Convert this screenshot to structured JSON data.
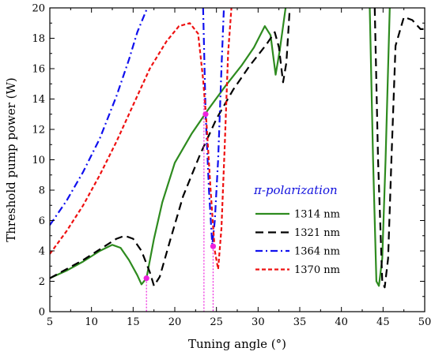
{
  "chart_data": {
    "type": "line",
    "title": "",
    "xlabel": "Tuning angle (°)",
    "ylabel": "Threshold pump power (W)",
    "xlim": [
      5,
      50
    ],
    "ylim": [
      0,
      20
    ],
    "x_ticks": [
      5,
      10,
      15,
      20,
      25,
      30,
      35,
      40,
      45,
      50
    ],
    "y_ticks": [
      0,
      2,
      4,
      6,
      8,
      10,
      12,
      14,
      16,
      18,
      20
    ],
    "grid": false,
    "legend": {
      "title": "π-polarization",
      "placement": "center-right"
    },
    "series": [
      {
        "name": "1314 nm",
        "color": "#2e8b1f",
        "dash": "solid",
        "segments": [
          [
            [
              5,
              2.2
            ],
            [
              7,
              2.7
            ],
            [
              9,
              3.3
            ],
            [
              11,
              4.0
            ],
            [
              12.5,
              4.4
            ],
            [
              13.5,
              4.2
            ],
            [
              14.5,
              3.4
            ],
            [
              15.5,
              2.4
            ],
            [
              16,
              1.8
            ],
            [
              16.6,
              2.2
            ],
            [
              17.5,
              4.8
            ],
            [
              18.5,
              7.2
            ],
            [
              20,
              9.8
            ],
            [
              22,
              11.7
            ],
            [
              24,
              13.3
            ],
            [
              26,
              14.8
            ],
            [
              28,
              16.2
            ],
            [
              29.5,
              17.4
            ],
            [
              30.8,
              18.8
            ],
            [
              31.5,
              18.2
            ],
            [
              32.1,
              15.6
            ],
            [
              32.6,
              17.2
            ],
            [
              33.3,
              20
            ]
          ],
          [
            [
              43.4,
              20
            ],
            [
              43.8,
              10
            ],
            [
              44.2,
              2.0
            ],
            [
              44.5,
              1.7
            ],
            [
              44.9,
              3.5
            ],
            [
              45.3,
              10
            ],
            [
              45.8,
              20
            ]
          ]
        ]
      },
      {
        "name": "1321 nm",
        "color": "#000000",
        "dash": "long-dash",
        "segments": [
          [
            [
              5,
              2.2
            ],
            [
              7,
              2.8
            ],
            [
              9,
              3.4
            ],
            [
              11,
              4.1
            ],
            [
              13,
              4.8
            ],
            [
              14,
              5.0
            ],
            [
              15,
              4.8
            ],
            [
              16,
              4.0
            ],
            [
              17,
              2.6
            ],
            [
              17.5,
              1.7
            ],
            [
              18.2,
              2.3
            ],
            [
              19.5,
              4.8
            ],
            [
              21,
              7.6
            ],
            [
              23,
              10.3
            ],
            [
              25,
              12.7
            ],
            [
              27,
              14.6
            ],
            [
              29,
              16.2
            ],
            [
              31,
              17.6
            ],
            [
              32,
              18.4
            ],
            [
              32.5,
              17.4
            ],
            [
              33,
              15.1
            ],
            [
              33.4,
              16.4
            ],
            [
              33.8,
              20
            ]
          ],
          [
            [
              44.0,
              20
            ],
            [
              44.4,
              10
            ],
            [
              44.9,
              2.0
            ],
            [
              45.2,
              1.6
            ],
            [
              45.6,
              3.5
            ],
            [
              46.0,
              10
            ],
            [
              46.5,
              17.5
            ],
            [
              47.5,
              19.4
            ],
            [
              48.5,
              19.2
            ],
            [
              49.5,
              18.6
            ],
            [
              50,
              18.6
            ]
          ]
        ]
      },
      {
        "name": "1364 nm",
        "color": "#1010ee",
        "dash": "dash-dot",
        "segments": [
          [
            [
              5,
              5.7
            ],
            [
              7,
              7.3
            ],
            [
              9,
              9.2
            ],
            [
              11,
              11.4
            ],
            [
              13,
              14.2
            ],
            [
              14.5,
              16.6
            ],
            [
              15.5,
              18.4
            ],
            [
              16.7,
              20
            ]
          ],
          [
            [
              23.4,
              20
            ],
            [
              23.7,
              13.0
            ],
            [
              24.1,
              8.0
            ],
            [
              24.5,
              4.4
            ],
            [
              24.8,
              6.0
            ],
            [
              25.2,
              10.0
            ],
            [
              25.6,
              16.0
            ],
            [
              25.9,
              20
            ]
          ]
        ]
      },
      {
        "name": "1370 nm",
        "color": "#ee1111",
        "dash": "short-dash",
        "segments": [
          [
            [
              5,
              3.8
            ],
            [
              7,
              5.3
            ],
            [
              9,
              7.0
            ],
            [
              11,
              9.0
            ],
            [
              13,
              11.2
            ],
            [
              15,
              13.6
            ],
            [
              17,
              16.0
            ],
            [
              19,
              17.8
            ],
            [
              20.5,
              18.8
            ],
            [
              21.8,
              19.0
            ],
            [
              22.8,
              18.3
            ],
            [
              23.4,
              15.3
            ],
            [
              23.8,
              12.5
            ],
            [
              24.3,
              8.0
            ],
            [
              24.8,
              4.0
            ],
            [
              25.2,
              2.8
            ],
            [
              25.6,
              5.5
            ],
            [
              26.0,
              11.0
            ],
            [
              26.4,
              17.0
            ],
            [
              26.8,
              20
            ]
          ]
        ]
      }
    ],
    "markers": [
      {
        "x": 16.6,
        "y": 2.2,
        "color": "#ee22dd"
      },
      {
        "x": 23.7,
        "y": 13.0,
        "color": "#ee22dd"
      },
      {
        "x": 24.6,
        "y": 4.3,
        "color": "#ee22dd"
      }
    ],
    "guide_lines": [
      {
        "x": 16.6,
        "y_top": 2.2,
        "color": "#ee22dd"
      },
      {
        "x": 23.5,
        "y_top": 14.0,
        "color": "#ee22dd"
      },
      {
        "x": 24.6,
        "y_top": 4.3,
        "color": "#ee22dd"
      }
    ]
  }
}
